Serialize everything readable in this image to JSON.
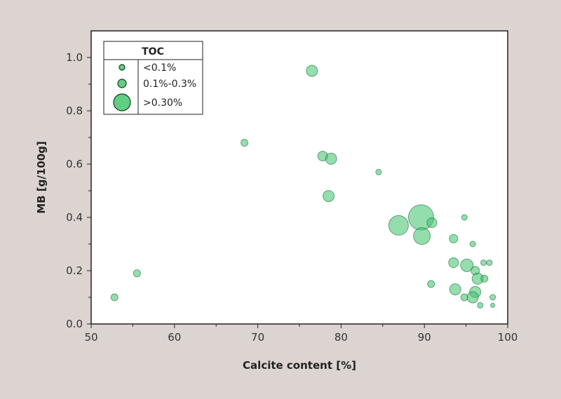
{
  "chart_data": {
    "type": "scatter",
    "title": "",
    "xlabel": "Calcite content [%]",
    "ylabel": "MB [g/100g]",
    "xlim": [
      50,
      100
    ],
    "ylim": [
      0,
      1.1
    ],
    "xticks": [
      50,
      60,
      70,
      80,
      90,
      100
    ],
    "xtick_labels": [
      "50",
      "60",
      "70",
      "80",
      "90",
      "100"
    ],
    "yticks": [
      0,
      0.2,
      0.4,
      0.6,
      0.8,
      1.0
    ],
    "ytick_labels": [
      "0.0",
      "0.2",
      "0.4",
      "0.6",
      "0.8",
      "1.0"
    ],
    "grid": false,
    "marker_color": "#3cc26a",
    "legend": {
      "title": "TOC",
      "placement": "top-left",
      "entries": [
        {
          "label": "<0.1%",
          "size": 4
        },
        {
          "label": "0.1%-0.3%",
          "size": 6
        },
        {
          "label": ">0.30%",
          "size": 12
        }
      ]
    },
    "points": [
      {
        "x": 52.8,
        "y": 0.1,
        "size": 5
      },
      {
        "x": 55.5,
        "y": 0.19,
        "size": 5
      },
      {
        "x": 68.4,
        "y": 0.68,
        "size": 5
      },
      {
        "x": 76.5,
        "y": 0.95,
        "size": 8
      },
      {
        "x": 77.8,
        "y": 0.63,
        "size": 7
      },
      {
        "x": 78.8,
        "y": 0.62,
        "size": 8
      },
      {
        "x": 78.5,
        "y": 0.48,
        "size": 8
      },
      {
        "x": 84.5,
        "y": 0.57,
        "size": 4
      },
      {
        "x": 86.9,
        "y": 0.37,
        "size": 14
      },
      {
        "x": 89.6,
        "y": 0.4,
        "size": 18
      },
      {
        "x": 89.7,
        "y": 0.33,
        "size": 12
      },
      {
        "x": 90.9,
        "y": 0.38,
        "size": 7
      },
      {
        "x": 94.8,
        "y": 0.4,
        "size": 4
      },
      {
        "x": 93.5,
        "y": 0.32,
        "size": 6
      },
      {
        "x": 95.8,
        "y": 0.3,
        "size": 4
      },
      {
        "x": 93.5,
        "y": 0.23,
        "size": 7
      },
      {
        "x": 95.1,
        "y": 0.22,
        "size": 9
      },
      {
        "x": 97.1,
        "y": 0.23,
        "size": 4
      },
      {
        "x": 97.8,
        "y": 0.23,
        "size": 4
      },
      {
        "x": 96.1,
        "y": 0.2,
        "size": 6
      },
      {
        "x": 96.4,
        "y": 0.17,
        "size": 8
      },
      {
        "x": 97.2,
        "y": 0.17,
        "size": 5
      },
      {
        "x": 90.8,
        "y": 0.15,
        "size": 5
      },
      {
        "x": 93.7,
        "y": 0.13,
        "size": 8
      },
      {
        "x": 96.1,
        "y": 0.12,
        "size": 8
      },
      {
        "x": 94.8,
        "y": 0.1,
        "size": 5
      },
      {
        "x": 95.8,
        "y": 0.1,
        "size": 8
      },
      {
        "x": 98.2,
        "y": 0.1,
        "size": 4
      },
      {
        "x": 96.7,
        "y": 0.07,
        "size": 4
      },
      {
        "x": 98.2,
        "y": 0.07,
        "size": 3
      }
    ]
  }
}
